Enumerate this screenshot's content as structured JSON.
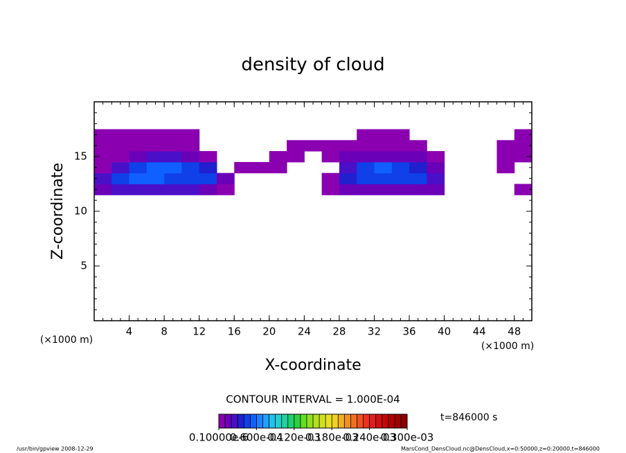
{
  "chart_data": {
    "type": "contour",
    "title": "density of cloud",
    "x_label": "X-coordinate",
    "y_label": "Z-coordinate",
    "x_unit": "(×1000 m)",
    "xlim": [
      0,
      50
    ],
    "ylim": [
      0,
      20
    ],
    "xticks": [
      4,
      8,
      12,
      16,
      20,
      24,
      28,
      32,
      36,
      40,
      44,
      48
    ],
    "yticks": [
      5,
      10,
      15
    ],
    "x": [
      1,
      3,
      5,
      7,
      9,
      11,
      13,
      15,
      17,
      19,
      21,
      23,
      25,
      27,
      29,
      31,
      33,
      35,
      37,
      39,
      41,
      43,
      45,
      47,
      49
    ],
    "z": [
      12,
      13,
      14,
      15,
      16,
      17
    ],
    "values": [
      [
        2e-05,
        3e-05,
        3e-05,
        3e-05,
        3e-05,
        3e-05,
        2e-05,
        1e-05,
        0,
        0,
        0,
        0,
        0,
        1e-05,
        2e-05,
        2e-05,
        2e-05,
        2e-05,
        2e-05,
        2e-05,
        0,
        0,
        0,
        0,
        1e-05
      ],
      [
        3e-05,
        5e-05,
        6e-05,
        6e-05,
        5e-05,
        5e-05,
        5e-05,
        2e-05,
        0,
        0,
        0,
        0,
        0,
        1e-05,
        4e-05,
        5e-05,
        5e-05,
        5e-05,
        5e-05,
        3e-05,
        0,
        0,
        0,
        0,
        0
      ],
      [
        1e-05,
        3e-05,
        5e-05,
        6e-05,
        6e-05,
        5e-05,
        4e-05,
        0,
        1e-05,
        1e-05,
        1e-05,
        0,
        0,
        0,
        3e-05,
        5e-05,
        6e-05,
        5e-05,
        4e-05,
        2e-05,
        0,
        0,
        0,
        1e-05,
        0
      ],
      [
        1e-05,
        1e-05,
        2e-05,
        3e-05,
        3e-05,
        2e-05,
        1e-05,
        0,
        0,
        0,
        1e-05,
        1e-05,
        0,
        1e-05,
        2e-05,
        2e-05,
        2e-05,
        2e-05,
        2e-05,
        1e-05,
        0,
        0,
        0,
        1e-05,
        1e-05
      ],
      [
        1e-05,
        1e-05,
        1e-05,
        1e-05,
        1e-05,
        1e-05,
        0,
        0,
        0,
        0,
        0,
        1e-05,
        1e-05,
        1e-05,
        1e-05,
        1e-05,
        1e-05,
        1e-05,
        1e-05,
        0,
        0,
        0,
        0,
        1e-05,
        1e-05
      ],
      [
        1e-05,
        1e-05,
        1e-05,
        1e-05,
        1e-05,
        1e-05,
        0,
        0,
        0,
        0,
        0,
        0,
        0,
        0,
        0,
        1e-05,
        1e-05,
        1e-05,
        0,
        0,
        0,
        0,
        0,
        0,
        1e-05
      ]
    ],
    "clim": [
      1e-07,
      0.0003
    ],
    "colormap": [
      "#8a00b0",
      "#6a00b8",
      "#4a10c8",
      "#2020d0",
      "#1040e8",
      "#1060ff",
      "#2080ff",
      "#20a0ff",
      "#20c0f0",
      "#20d0d0",
      "#20d0a0",
      "#20d070",
      "#30d040",
      "#60e020",
      "#90e020",
      "#b0e020",
      "#d0e020",
      "#e8e020",
      "#f0d020",
      "#f0b020",
      "#f09020",
      "#f07020",
      "#f05020",
      "#f03020",
      "#e02020",
      "#d01010",
      "#c00808",
      "#b00000",
      "#a00000",
      "#900000"
    ],
    "colorbar_ticks": [
      {
        "value": 1e-07,
        "label": "0.10000e-6"
      },
      {
        "value": 6e-05,
        "label": "0.600e-04"
      },
      {
        "value": 0.00012,
        "label": "0.120e-03"
      },
      {
        "value": 0.00018,
        "label": "0.180e-03"
      },
      {
        "value": 0.00024,
        "label": "0.240e-03"
      },
      {
        "value": 0.0003,
        "label": "0.300e-03"
      }
    ],
    "contour_interval": "CONTOUR INTERVAL = 1.000E-04",
    "time_label": "t=846000 s",
    "footer_left": "/usr/bin/gpview  2008-12-29",
    "footer_right": "MarsCond_DensCloud.nc@DensCloud,x=0:50000,z=0:20000,t=846000"
  }
}
